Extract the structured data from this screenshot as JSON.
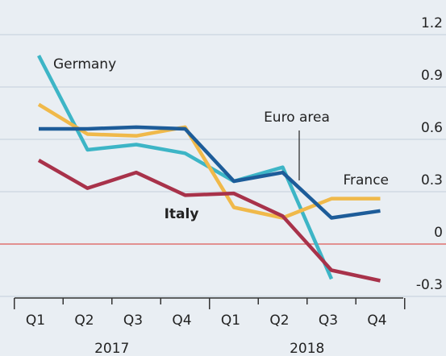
{
  "chart_data": {
    "type": "line",
    "categories": [
      "Q1",
      "Q2",
      "Q3",
      "Q4",
      "Q1",
      "Q2",
      "Q3",
      "Q4"
    ],
    "category_groups": [
      "2017",
      "2018"
    ],
    "series": [
      {
        "name": "Germany",
        "color": "#3db5c6",
        "values": [
          1.08,
          0.54,
          0.57,
          0.52,
          0.36,
          0.44,
          -0.2,
          null
        ]
      },
      {
        "name": "France",
        "color": "#f0b94a",
        "values": [
          0.8,
          0.63,
          0.62,
          0.67,
          0.21,
          0.15,
          0.26,
          0.26
        ]
      },
      {
        "name": "Euro area",
        "color": "#1d5c99",
        "values": [
          0.66,
          0.66,
          0.67,
          0.66,
          0.36,
          0.41,
          0.15,
          0.19
        ]
      },
      {
        "name": "Italy",
        "color": "#a8324a",
        "values": [
          0.48,
          0.32,
          0.41,
          0.28,
          0.29,
          0.16,
          -0.15,
          -0.21
        ]
      }
    ],
    "ylim": [
      -0.3,
      1.2
    ],
    "yticks": [
      1.2,
      0.9,
      0.6,
      0.3,
      0,
      -0.3
    ],
    "grid": true,
    "zero_line_color": "#e07070"
  }
}
